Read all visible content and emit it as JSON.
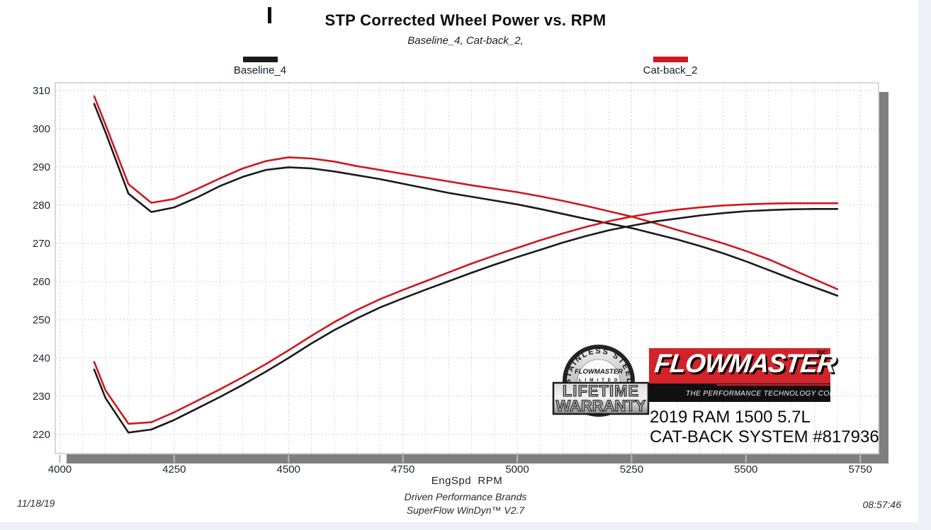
{
  "page": {
    "title": "STP Corrected Wheel Power vs. RPM",
    "subtitle": "Baseline_4, Cat-back_2,",
    "footer": {
      "date": "11/18/19",
      "center_line1": "Driven Performance Brands",
      "center_line2": "SuperFlow WinDyn™ V2.7",
      "time": "08:57:46"
    }
  },
  "legend": [
    {
      "label": "Baseline_4",
      "color": "#1a1a1a"
    },
    {
      "label": "Cat-back_2",
      "color": "#cf181f"
    }
  ],
  "branding": {
    "warranty_badge": {
      "arc_text": "STAINLESS STEEL",
      "brand": "FLOWMASTER",
      "limited": "L I M I T E D",
      "line1": "LIFETIME",
      "line2": "WARRANTY"
    },
    "logo": {
      "brand": "FLOWMASTER",
      "inc": "INC.",
      "tagline": "THE PERFORMANCE TECHNOLOGY COMPANY",
      "red": "#d2232a"
    },
    "vehicle_line1": "2019 RAM 1500 5.7L",
    "vehicle_line2": "CAT-BACK SYSTEM #817936"
  },
  "chart_data": {
    "type": "line",
    "title": "STP Corrected Wheel Power vs. RPM",
    "subtitle": "Baseline_4, Cat-back_2,",
    "xlabel": "EngSpd  RPM",
    "ylabel": "",
    "x_range": [
      3990,
      5790
    ],
    "y_range": [
      215,
      312
    ],
    "x_ticks": [
      4000,
      4250,
      4500,
      4750,
      5000,
      5250,
      5500,
      5750
    ],
    "y_ticks": [
      220,
      230,
      240,
      250,
      260,
      270,
      280,
      290,
      300,
      310
    ],
    "x_minor_step": 50,
    "grid": "dashed",
    "legend_position": "top",
    "colors": {
      "grid": "#ccced9",
      "grid_minor": "#d6d8e1",
      "frame": "#aab0ba",
      "shadow_bar": "#7f7f7f",
      "tick_text": "#1c2330"
    },
    "series": [
      {
        "name": "Baseline_4",
        "curve": "upper",
        "color": "#1a1a1a",
        "points": [
          [
            4075,
            306.5
          ],
          [
            4100,
            299
          ],
          [
            4150,
            283
          ],
          [
            4200,
            278.2
          ],
          [
            4250,
            279.4
          ],
          [
            4300,
            282
          ],
          [
            4350,
            285
          ],
          [
            4400,
            287.4
          ],
          [
            4450,
            289.2
          ],
          [
            4500,
            289.9
          ],
          [
            4550,
            289.6
          ],
          [
            4600,
            288.8
          ],
          [
            4650,
            287.8
          ],
          [
            4700,
            286.8
          ],
          [
            4750,
            285.6
          ],
          [
            4800,
            284.4
          ],
          [
            4850,
            283.2
          ],
          [
            4900,
            282.2
          ],
          [
            4950,
            281.2
          ],
          [
            5000,
            280.2
          ],
          [
            5050,
            279
          ],
          [
            5100,
            277.7
          ],
          [
            5150,
            276.4
          ],
          [
            5200,
            275.2
          ],
          [
            5250,
            274
          ],
          [
            5300,
            272.5
          ],
          [
            5350,
            271
          ],
          [
            5400,
            269.3
          ],
          [
            5450,
            267.4
          ],
          [
            5500,
            265.3
          ],
          [
            5550,
            263
          ],
          [
            5600,
            260.7
          ],
          [
            5650,
            258.5
          ],
          [
            5700,
            256.3
          ]
        ]
      },
      {
        "name": "Cat-back_2",
        "curve": "upper",
        "color": "#cf181f",
        "points": [
          [
            4075,
            308.5
          ],
          [
            4100,
            301
          ],
          [
            4150,
            285.5
          ],
          [
            4200,
            280.6
          ],
          [
            4250,
            281.6
          ],
          [
            4300,
            284.2
          ],
          [
            4350,
            287
          ],
          [
            4400,
            289.6
          ],
          [
            4450,
            291.5
          ],
          [
            4500,
            292.5
          ],
          [
            4550,
            292.2
          ],
          [
            4600,
            291.4
          ],
          [
            4650,
            290.2
          ],
          [
            4700,
            289.2
          ],
          [
            4750,
            288.2
          ],
          [
            4800,
            287.2
          ],
          [
            4850,
            286.2
          ],
          [
            4900,
            285.2
          ],
          [
            4950,
            284.3
          ],
          [
            5000,
            283.4
          ],
          [
            5050,
            282.3
          ],
          [
            5100,
            281.1
          ],
          [
            5150,
            279.8
          ],
          [
            5200,
            278.4
          ],
          [
            5250,
            277
          ],
          [
            5300,
            275.3
          ],
          [
            5350,
            273.5
          ],
          [
            5400,
            271.8
          ],
          [
            5450,
            270
          ],
          [
            5500,
            268
          ],
          [
            5550,
            265.8
          ],
          [
            5600,
            263.2
          ],
          [
            5650,
            260.6
          ],
          [
            5700,
            258
          ]
        ]
      },
      {
        "name": "Baseline_4",
        "curve": "lower",
        "color": "#1a1a1a",
        "points": [
          [
            4075,
            237
          ],
          [
            4100,
            229.5
          ],
          [
            4150,
            220.5
          ],
          [
            4200,
            221.3
          ],
          [
            4250,
            223.8
          ],
          [
            4300,
            226.8
          ],
          [
            4350,
            229.8
          ],
          [
            4400,
            233
          ],
          [
            4450,
            236.4
          ],
          [
            4500,
            240
          ],
          [
            4550,
            243.8
          ],
          [
            4600,
            247.3
          ],
          [
            4650,
            250.4
          ],
          [
            4700,
            253.2
          ],
          [
            4750,
            255.6
          ],
          [
            4800,
            257.9
          ],
          [
            4850,
            260.1
          ],
          [
            4900,
            262.3
          ],
          [
            4950,
            264.4
          ],
          [
            5000,
            266.4
          ],
          [
            5050,
            268.3
          ],
          [
            5100,
            270.2
          ],
          [
            5150,
            271.9
          ],
          [
            5200,
            273.4
          ],
          [
            5250,
            274.6
          ],
          [
            5300,
            275.7
          ],
          [
            5350,
            276.5
          ],
          [
            5400,
            277.3
          ],
          [
            5450,
            277.9
          ],
          [
            5500,
            278.4
          ],
          [
            5550,
            278.7
          ],
          [
            5600,
            278.9
          ],
          [
            5650,
            279
          ],
          [
            5700,
            279
          ]
        ]
      },
      {
        "name": "Cat-back_2",
        "curve": "lower",
        "color": "#cf181f",
        "points": [
          [
            4075,
            239
          ],
          [
            4100,
            231.5
          ],
          [
            4150,
            222.8
          ],
          [
            4200,
            223.2
          ],
          [
            4250,
            225.8
          ],
          [
            4300,
            228.8
          ],
          [
            4350,
            231.8
          ],
          [
            4400,
            235
          ],
          [
            4450,
            238.4
          ],
          [
            4500,
            242
          ],
          [
            4550,
            245.8
          ],
          [
            4600,
            249.4
          ],
          [
            4650,
            252.6
          ],
          [
            4700,
            255.4
          ],
          [
            4750,
            257.8
          ],
          [
            4800,
            260.1
          ],
          [
            4850,
            262.4
          ],
          [
            4900,
            264.7
          ],
          [
            4950,
            266.8
          ],
          [
            5000,
            268.8
          ],
          [
            5050,
            270.8
          ],
          [
            5100,
            272.6
          ],
          [
            5150,
            274.3
          ],
          [
            5200,
            275.8
          ],
          [
            5250,
            277
          ],
          [
            5300,
            278
          ],
          [
            5350,
            278.8
          ],
          [
            5400,
            279.4
          ],
          [
            5450,
            279.9
          ],
          [
            5500,
            280.2
          ],
          [
            5550,
            280.4
          ],
          [
            5600,
            280.5
          ],
          [
            5650,
            280.5
          ],
          [
            5700,
            280.5
          ]
        ]
      }
    ]
  }
}
